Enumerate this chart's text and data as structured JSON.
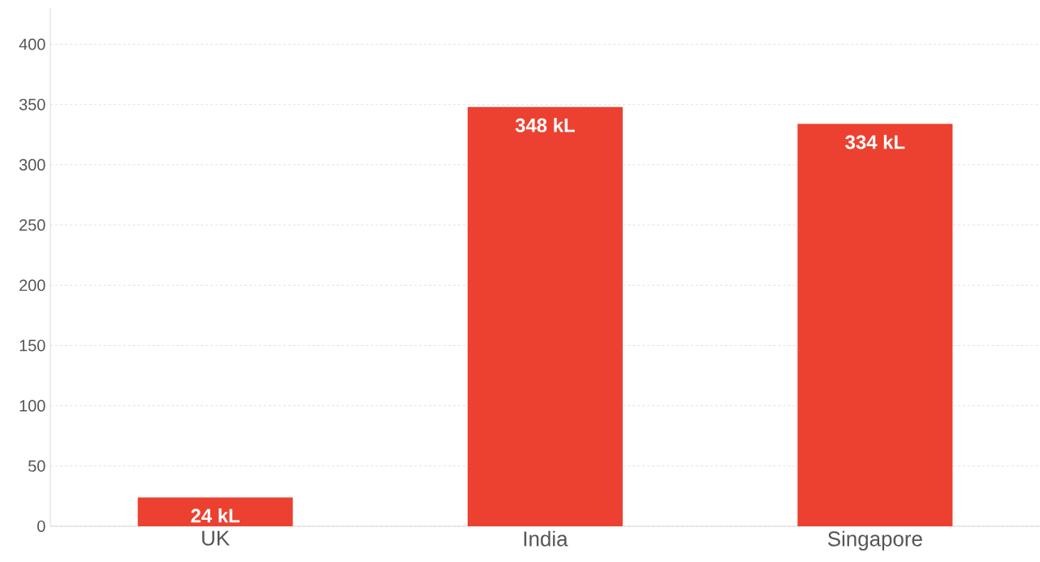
{
  "chart_data": {
    "type": "bar",
    "categories": [
      "UK",
      "India",
      "Singapore"
    ],
    "values": [
      24,
      348,
      334
    ],
    "value_labels": [
      "24 kL",
      "348 kL",
      "334 kL"
    ],
    "color": "#ec4130",
    "ylim": [
      0,
      430
    ],
    "yticks": [
      0,
      50,
      100,
      150,
      200,
      250,
      300,
      350,
      400
    ],
    "grid": "y"
  }
}
